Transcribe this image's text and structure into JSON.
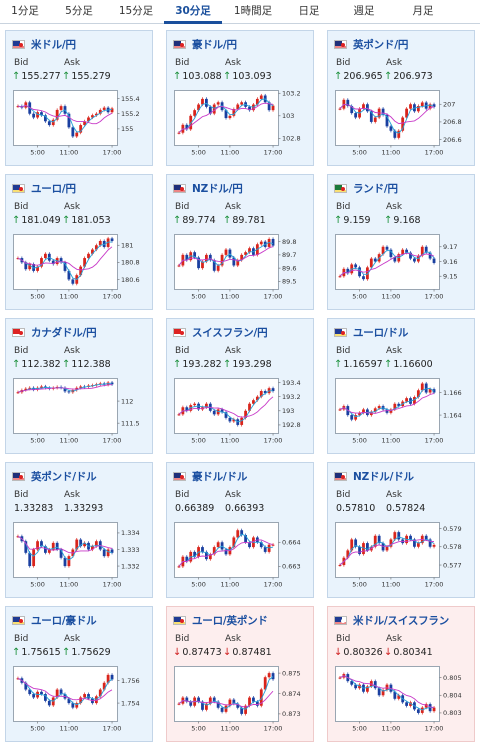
{
  "tabs": [
    {
      "label": "1分足",
      "active": false
    },
    {
      "label": "5分足",
      "active": false
    },
    {
      "label": "15分足",
      "active": false
    },
    {
      "label": "30分足",
      "active": true
    },
    {
      "label": "1時間足",
      "active": false
    },
    {
      "label": "日足",
      "active": false
    },
    {
      "label": "週足",
      "active": false
    },
    {
      "label": "月足",
      "active": false
    }
  ],
  "labels": {
    "bid": "Bid",
    "ask": "Ask"
  },
  "colors": {
    "up": "#1a8f3a",
    "down": "#d02020",
    "candle_up": "#d9251c",
    "candle_down": "#1a3fa0",
    "ma_fast": "#26a0d8",
    "ma_slow": "#c83ac8",
    "tint_up": "#e9f3fc",
    "tint_down": "#fdeeee"
  },
  "cards": [
    {
      "name": "usdjpy",
      "pair": "米ドル/円",
      "flag": "us-jp",
      "dir": "up",
      "bid": "155.277",
      "ask": "155.279",
      "chart_data": {
        "type": "candlestick",
        "x_ticks": [
          "5:00",
          "11:00",
          "17:00"
        ],
        "y_ticks": [
          "155.4",
          "155.2",
          "155"
        ],
        "ylim": [
          154.8,
          155.5
        ],
        "closes": [
          155.3,
          155.28,
          155.35,
          155.2,
          155.15,
          155.22,
          155.18,
          155.1,
          155.05,
          155.12,
          155.25,
          155.3,
          155.2,
          155.02,
          154.9,
          154.95,
          155.05,
          155.1,
          155.15,
          155.18,
          155.2,
          155.25,
          155.28,
          155.22,
          155.27
        ]
      }
    },
    {
      "name": "audjpy",
      "pair": "豪ドル/円",
      "flag": "au-jp",
      "dir": "up",
      "bid": "103.088",
      "ask": "103.093",
      "chart_data": {
        "type": "candlestick",
        "x_ticks": [
          "5:00",
          "11:00",
          "17:00"
        ],
        "y_ticks": [
          "103.2",
          "103",
          "102.8"
        ],
        "ylim": [
          102.75,
          103.22
        ],
        "closes": [
          102.85,
          102.92,
          102.88,
          103.0,
          103.05,
          103.1,
          103.15,
          103.08,
          103.02,
          103.1,
          103.12,
          103.05,
          102.98,
          103.0,
          103.06,
          103.1,
          103.12,
          103.08,
          103.05,
          103.1,
          103.15,
          103.18,
          103.12,
          103.05,
          103.09
        ]
      }
    },
    {
      "name": "gbpjpy",
      "pair": "英ポンド/円",
      "flag": "gb-jp",
      "dir": "up",
      "bid": "206.965",
      "ask": "206.973",
      "chart_data": {
        "type": "candlestick",
        "x_ticks": [
          "5:00",
          "11:00",
          "17:00"
        ],
        "y_ticks": [
          "207",
          "206.8",
          "206.6"
        ],
        "ylim": [
          206.55,
          207.15
        ],
        "closes": [
          206.95,
          207.05,
          206.98,
          206.9,
          206.85,
          206.95,
          207.0,
          206.92,
          206.8,
          206.85,
          206.95,
          206.88,
          206.75,
          206.7,
          206.62,
          206.7,
          206.85,
          206.95,
          207.0,
          206.92,
          206.98,
          207.02,
          206.95,
          207.0,
          206.97
        ]
      }
    },
    {
      "name": "eurjpy",
      "pair": "ユーロ/円",
      "flag": "eu-jp",
      "dir": "up",
      "bid": "181.049",
      "ask": "181.053",
      "chart_data": {
        "type": "candlestick",
        "x_ticks": [
          "5:00",
          "11:00",
          "17:00"
        ],
        "y_ticks": [
          "181",
          "180.8",
          "180.6"
        ],
        "ylim": [
          180.5,
          181.12
        ],
        "closes": [
          180.85,
          180.8,
          180.72,
          180.78,
          180.7,
          180.75,
          180.85,
          180.9,
          180.82,
          180.78,
          180.85,
          180.8,
          180.7,
          180.6,
          180.55,
          180.65,
          180.75,
          180.85,
          180.9,
          180.95,
          181.0,
          181.05,
          180.98,
          181.08,
          181.05
        ]
      }
    },
    {
      "name": "nzdjpy",
      "pair": "NZドル/円",
      "flag": "nz-jp",
      "dir": "up",
      "bid": "89.774",
      "ask": "89.781",
      "chart_data": {
        "type": "candlestick",
        "x_ticks": [
          "5:00",
          "11:00",
          "17:00"
        ],
        "y_ticks": [
          "89.8",
          "89.7",
          "89.6",
          "89.5"
        ],
        "ylim": [
          89.45,
          89.85
        ],
        "closes": [
          89.62,
          89.7,
          89.66,
          89.72,
          89.68,
          89.6,
          89.65,
          89.7,
          89.66,
          89.58,
          89.62,
          89.7,
          89.74,
          89.68,
          89.62,
          89.66,
          89.7,
          89.72,
          89.75,
          89.7,
          89.78,
          89.8,
          89.76,
          89.82,
          89.77
        ]
      }
    },
    {
      "name": "zarjpy",
      "pair": "ランド/円",
      "flag": "za-jp",
      "dir": "up",
      "bid": "9.159",
      "ask": "9.168",
      "chart_data": {
        "type": "candlestick",
        "x_ticks": [
          "5:00",
          "11:00",
          "17:00"
        ],
        "y_ticks": [
          "9.17",
          "9.16",
          "9.15"
        ],
        "ylim": [
          9.142,
          9.178
        ],
        "closes": [
          9.15,
          9.155,
          9.152,
          9.158,
          9.156,
          9.15,
          9.148,
          9.156,
          9.162,
          9.16,
          9.165,
          9.17,
          9.168,
          9.163,
          9.16,
          9.165,
          9.168,
          9.166,
          9.162,
          9.16,
          9.164,
          9.17,
          9.166,
          9.162,
          9.159
        ]
      }
    },
    {
      "name": "cadjpy",
      "pair": "カナダドル/円",
      "flag": "ca-jp",
      "dir": "up",
      "bid": "112.382",
      "ask": "112.388",
      "chart_data": {
        "type": "candlestick",
        "x_ticks": [
          "5:00",
          "11:00",
          "17:00"
        ],
        "y_ticks": [
          "112",
          "111.5"
        ],
        "ylim": [
          111.3,
          112.5
        ],
        "closes": [
          112.2,
          112.25,
          112.28,
          112.3,
          112.26,
          112.3,
          112.33,
          112.3,
          112.28,
          112.3,
          112.32,
          112.3,
          112.22,
          112.2,
          112.25,
          112.3,
          112.33,
          112.32,
          112.35,
          112.36,
          112.38,
          112.4,
          112.37,
          112.42,
          112.38
        ]
      }
    },
    {
      "name": "chfjpy",
      "pair": "スイスフラン/円",
      "flag": "ch-jp",
      "dir": "up",
      "bid": "193.282",
      "ask": "193.298",
      "chart_data": {
        "type": "candlestick",
        "x_ticks": [
          "5:00",
          "11:00",
          "17:00"
        ],
        "y_ticks": [
          "193.4",
          "193.2",
          "193",
          "192.8"
        ],
        "ylim": [
          192.7,
          193.45
        ],
        "closes": [
          192.95,
          193.05,
          193.0,
          193.08,
          193.1,
          193.02,
          193.05,
          193.1,
          193.0,
          192.95,
          193.02,
          192.98,
          192.9,
          192.85,
          192.88,
          192.8,
          192.9,
          193.0,
          193.1,
          193.15,
          193.2,
          193.28,
          193.25,
          193.32,
          193.28
        ]
      }
    },
    {
      "name": "eurusd",
      "pair": "ユーロ/ドル",
      "flag": "eu-us",
      "dir": "up",
      "bid": "1.16597",
      "ask": "1.16600",
      "chart_data": {
        "type": "candlestick",
        "x_ticks": [
          "5:00",
          "11:00",
          "17:00"
        ],
        "y_ticks": [
          "1.166",
          "1.164"
        ],
        "ylim": [
          1.1625,
          1.1672
        ],
        "closes": [
          1.1645,
          1.1648,
          1.164,
          1.1636,
          1.164,
          1.1642,
          1.1645,
          1.164,
          1.1643,
          1.1646,
          1.1648,
          1.1645,
          1.1642,
          1.1645,
          1.165,
          1.1648,
          1.1652,
          1.1655,
          1.165,
          1.1656,
          1.1662,
          1.1668,
          1.166,
          1.1663,
          1.166
        ]
      }
    },
    {
      "name": "gbpusd",
      "pair": "英ポンド/ドル",
      "flag": "gb-us",
      "dir": "none",
      "bid": "1.33283",
      "ask": "1.33293",
      "chart_data": {
        "type": "candlestick",
        "x_ticks": [
          "5:00",
          "11:00",
          "17:00"
        ],
        "y_ticks": [
          "1.334",
          "1.333",
          "1.332"
        ],
        "ylim": [
          1.3314,
          1.3346
        ],
        "closes": [
          1.3338,
          1.3335,
          1.3328,
          1.332,
          1.333,
          1.3335,
          1.3332,
          1.3328,
          1.333,
          1.3334,
          1.333,
          1.3325,
          1.332,
          1.3326,
          1.333,
          1.3336,
          1.3332,
          1.3334,
          1.333,
          1.3332,
          1.3335,
          1.333,
          1.3326,
          1.333,
          1.3328
        ]
      }
    },
    {
      "name": "audusd",
      "pair": "豪ドル/ドル",
      "flag": "au-us",
      "dir": "none",
      "bid": "0.66389",
      "ask": "0.66393",
      "chart_data": {
        "type": "candlestick",
        "x_ticks": [
          "5:00",
          "11:00",
          "17:00"
        ],
        "y_ticks": [
          "0.664",
          "0.663"
        ],
        "ylim": [
          0.6626,
          0.6648
        ],
        "closes": [
          0.663,
          0.6634,
          0.6632,
          0.6636,
          0.6634,
          0.6638,
          0.6636,
          0.6633,
          0.6635,
          0.6638,
          0.664,
          0.6637,
          0.6635,
          0.6638,
          0.6642,
          0.6645,
          0.6643,
          0.664,
          0.6638,
          0.6642,
          0.664,
          0.6638,
          0.6636,
          0.6639,
          0.6639
        ]
      }
    },
    {
      "name": "nzdusd",
      "pair": "NZドル/ドル",
      "flag": "nz-us",
      "dir": "none",
      "bid": "0.57810",
      "ask": "0.57824",
      "chart_data": {
        "type": "candlestick",
        "x_ticks": [
          "5:00",
          "11:00",
          "17:00"
        ],
        "y_ticks": [
          "0.579",
          "0.578",
          "0.577"
        ],
        "ylim": [
          0.5764,
          0.5793
        ],
        "closes": [
          0.577,
          0.5774,
          0.5778,
          0.5784,
          0.578,
          0.5776,
          0.5782,
          0.5778,
          0.578,
          0.5786,
          0.5782,
          0.5778,
          0.578,
          0.5784,
          0.5788,
          0.5784,
          0.5782,
          0.5786,
          0.5784,
          0.578,
          0.5782,
          0.5786,
          0.5784,
          0.578,
          0.5781
        ]
      }
    },
    {
      "name": "euraud",
      "pair": "ユーロ/豪ドル",
      "flag": "eu-au",
      "dir": "up",
      "bid": "1.75615",
      "ask": "1.75629",
      "chart_data": {
        "type": "candlestick",
        "x_ticks": [
          "5:00",
          "11:00",
          "17:00"
        ],
        "y_ticks": [
          "1.756",
          "1.754"
        ],
        "ylim": [
          1.7525,
          1.7572
        ],
        "closes": [
          1.7562,
          1.7558,
          1.7552,
          1.7548,
          1.7545,
          1.755,
          1.7548,
          1.7542,
          1.7538,
          1.7545,
          1.7552,
          1.7548,
          1.7544,
          1.754,
          1.7536,
          1.754,
          1.7545,
          1.7548,
          1.7544,
          1.754,
          1.7546,
          1.7552,
          1.7558,
          1.7565,
          1.7561
        ]
      }
    },
    {
      "name": "eurgbp",
      "pair": "ユーロ/英ポンド",
      "flag": "eu-gb",
      "dir": "down",
      "bid": "0.87473",
      "ask": "0.87481",
      "chart_data": {
        "type": "candlestick",
        "x_ticks": [
          "5:00",
          "11:00",
          "17:00"
        ],
        "y_ticks": [
          "0.875",
          "0.874",
          "0.873"
        ],
        "ylim": [
          0.8727,
          0.8753
        ],
        "closes": [
          0.8735,
          0.8738,
          0.8736,
          0.8734,
          0.8738,
          0.8736,
          0.8732,
          0.8735,
          0.8738,
          0.8736,
          0.8733,
          0.8731,
          0.8734,
          0.8737,
          0.8735,
          0.8733,
          0.873,
          0.8734,
          0.8738,
          0.8736,
          0.8734,
          0.8742,
          0.8748,
          0.875,
          0.8747
        ]
      }
    },
    {
      "name": "usdchf",
      "pair": "米ドル/スイスフラン",
      "flag": "us-ch",
      "dir": "down",
      "bid": "0.80326",
      "ask": "0.80341",
      "chart_data": {
        "type": "candlestick",
        "x_ticks": [
          "5:00",
          "11:00",
          "17:00"
        ],
        "y_ticks": [
          "0.805",
          "0.804",
          "0.803"
        ],
        "ylim": [
          0.8026,
          0.8056
        ],
        "closes": [
          0.805,
          0.8052,
          0.8048,
          0.8046,
          0.8044,
          0.8046,
          0.8042,
          0.8045,
          0.8048,
          0.8044,
          0.804,
          0.8043,
          0.8046,
          0.8042,
          0.8038,
          0.804,
          0.8036,
          0.8034,
          0.8036,
          0.8032,
          0.803,
          0.8033,
          0.8035,
          0.8031,
          0.8033
        ]
      }
    }
  ]
}
